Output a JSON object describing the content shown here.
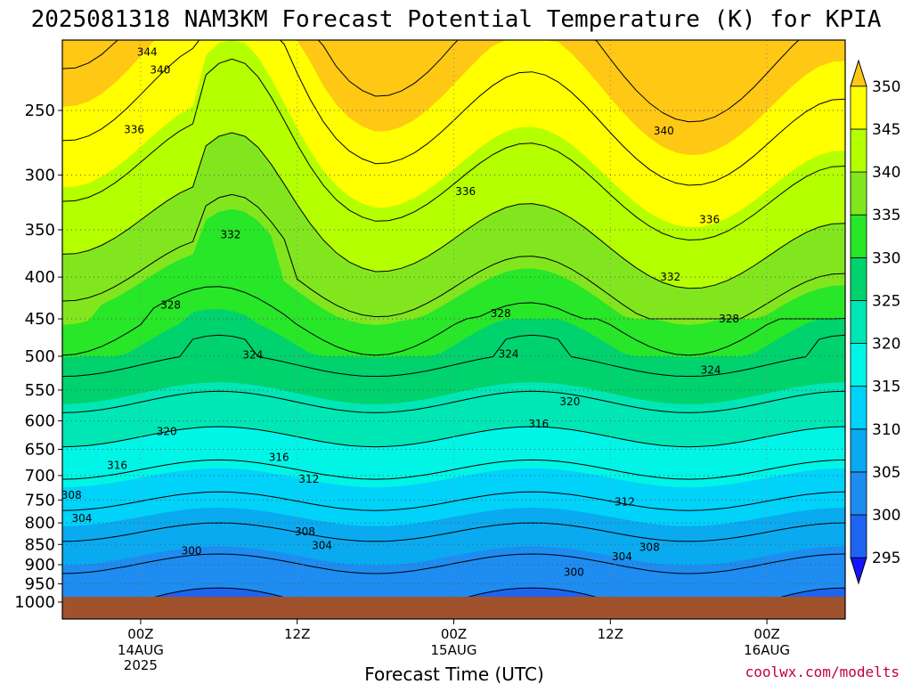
{
  "chart_data": {
    "type": "heatmap",
    "title": "2025081318 NAM3KM Forecast Potential Temperature (K) for KPIA",
    "xlabel": "Forecast Time (UTC)",
    "ylabel": "",
    "y_scale": "log-pressure",
    "y_axis_inverted": true,
    "ylim": [
      1000,
      200
    ],
    "y_ticks": [
      250,
      300,
      350,
      400,
      450,
      500,
      550,
      600,
      650,
      700,
      750,
      800,
      850,
      900,
      950,
      1000
    ],
    "y_tick_labels": [
      "250",
      "300",
      "350",
      "400",
      "450",
      "500",
      "550",
      "600",
      "650",
      "700",
      "750",
      "800",
      "850",
      "900",
      "950",
      "1000"
    ],
    "x_ticks": [
      {
        "forecast_hour": 6,
        "label": "00Z",
        "sublabel1": "14AUG",
        "sublabel2": "2025"
      },
      {
        "forecast_hour": 18,
        "label": "12Z",
        "sublabel1": "",
        "sublabel2": ""
      },
      {
        "forecast_hour": 30,
        "label": "00Z",
        "sublabel1": "15AUG",
        "sublabel2": ""
      },
      {
        "forecast_hour": 42,
        "label": "12Z",
        "sublabel1": "",
        "sublabel2": ""
      },
      {
        "forecast_hour": 54,
        "label": "00Z",
        "sublabel1": "16AUG",
        "sublabel2": ""
      }
    ],
    "xlim_forecast_hours": [
      0,
      60
    ],
    "grid": true,
    "colorbar": {
      "placement": "right",
      "levels": [
        295,
        300,
        305,
        310,
        315,
        320,
        325,
        330,
        335,
        340,
        345,
        350
      ],
      "labels": [
        "295",
        "300",
        "305",
        "310",
        "315",
        "320",
        "325",
        "330",
        "335",
        "340",
        "345",
        "350"
      ],
      "colors": [
        "#1414ff",
        "#1e64f0",
        "#1e8cf0",
        "#0aaaf0",
        "#00d2fa",
        "#00f5e6",
        "#00e6b4",
        "#00d26e",
        "#28e628",
        "#82e61e",
        "#b4ff00",
        "#ffff00",
        "#ffc814"
      ]
    },
    "ground_color": "#a0522d",
    "contour_labels": [
      {
        "label": "344",
        "x": 6.5,
        "p": 212
      },
      {
        "label": "340",
        "x": 7.5,
        "p": 223
      },
      {
        "label": "336",
        "x": 5.5,
        "p": 264
      },
      {
        "label": "332",
        "x": 12.9,
        "p": 355
      },
      {
        "label": "328",
        "x": 8.3,
        "p": 433
      },
      {
        "label": "324",
        "x": 14.6,
        "p": 498
      },
      {
        "label": "320",
        "x": 8.0,
        "p": 618
      },
      {
        "label": "316",
        "x": 4.2,
        "p": 680
      },
      {
        "label": "316",
        "x": 16.6,
        "p": 665
      },
      {
        "label": "312",
        "x": 18.9,
        "p": 707
      },
      {
        "label": "308",
        "x": 0.7,
        "p": 740
      },
      {
        "label": "304",
        "x": 1.5,
        "p": 790
      },
      {
        "label": "308",
        "x": 18.6,
        "p": 820
      },
      {
        "label": "304",
        "x": 19.9,
        "p": 853
      },
      {
        "label": "300",
        "x": 9.9,
        "p": 865
      },
      {
        "label": "336",
        "x": 30.9,
        "p": 314
      },
      {
        "label": "328",
        "x": 33.6,
        "p": 443
      },
      {
        "label": "324",
        "x": 34.2,
        "p": 497
      },
      {
        "label": "320",
        "x": 38.9,
        "p": 568
      },
      {
        "label": "316",
        "x": 36.5,
        "p": 605
      },
      {
        "label": "312",
        "x": 43.1,
        "p": 754
      },
      {
        "label": "304",
        "x": 42.9,
        "p": 880
      },
      {
        "label": "300",
        "x": 39.2,
        "p": 919
      },
      {
        "label": "308",
        "x": 45.0,
        "p": 857
      },
      {
        "label": "340",
        "x": 46.1,
        "p": 265
      },
      {
        "label": "336",
        "x": 49.6,
        "p": 340
      },
      {
        "label": "332",
        "x": 46.6,
        "p": 400
      },
      {
        "label": "328",
        "x": 51.1,
        "p": 450
      },
      {
        "label": "324",
        "x": 49.7,
        "p": 520
      }
    ]
  },
  "credit": "coolwx.com/modelts"
}
